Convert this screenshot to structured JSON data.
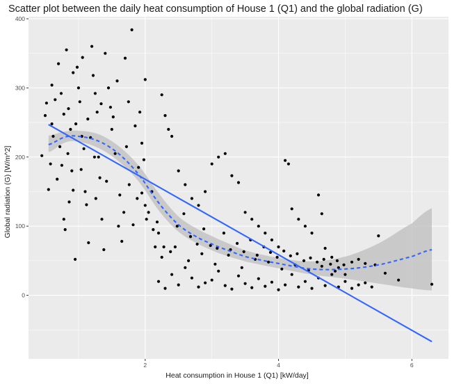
{
  "chart_data": {
    "type": "scatter",
    "title": "Scatter plot between the daily heat consumption of House 1 (Q1) and the global radiation (G)",
    "xlabel": "Heat consumption in House 1 (Q1) [kW/day]",
    "ylabel": "Global radiation (G) [W/m^2]",
    "xlim": [
      0.25,
      6.55
    ],
    "ylim": [
      -92,
      403
    ],
    "x_ticks": [
      2,
      4,
      6
    ],
    "x_tick_labels": [
      "2",
      "4",
      "6"
    ],
    "y_ticks": [
      0,
      100,
      200,
      300,
      400
    ],
    "y_tick_labels": [
      "0",
      "100",
      "200",
      "300",
      "400"
    ],
    "grid": true,
    "legend": "none",
    "colors": {
      "panel": "#ebebeb",
      "grid_major": "#ffffff",
      "points": "#000000",
      "linear_fit": "#3366ff",
      "smooth_fit": "#3366ff",
      "confidence_band": "#bdbdbd"
    },
    "linear_fit": {
      "x": [
        0.55,
        6.3
      ],
      "y": [
        247,
        -67
      ]
    },
    "smooth_fit": {
      "style": "dashed",
      "x": [
        0.55,
        0.8,
        1.0,
        1.3,
        1.6,
        1.9,
        2.2,
        2.5,
        2.8,
        3.1,
        3.5,
        4.0,
        4.5,
        5.0,
        5.5,
        6.0,
        6.3
      ],
      "y": [
        218,
        229,
        230,
        223,
        205,
        175,
        134,
        102,
        83,
        70,
        56,
        46,
        38,
        38,
        44,
        56,
        66
      ],
      "band_lower": [
        207,
        221,
        222,
        213,
        194,
        165,
        123,
        92,
        74,
        61,
        49,
        39,
        30,
        24,
        17,
        10,
        7
      ],
      "band_upper": [
        231,
        237,
        238,
        233,
        216,
        188,
        148,
        114,
        95,
        81,
        65,
        54,
        49,
        56,
        75,
        104,
        126
      ]
    },
    "points": [
      [
        0.45,
        202
      ],
      [
        0.55,
        153
      ],
      [
        0.5,
        260
      ],
      [
        0.6,
        304
      ],
      [
        0.6,
        248
      ],
      [
        0.65,
        283
      ],
      [
        0.7,
        335
      ],
      [
        0.72,
        215
      ],
      [
        0.75,
        188
      ],
      [
        0.78,
        110
      ],
      [
        0.8,
        95
      ],
      [
        0.82,
        355
      ],
      [
        0.85,
        270
      ],
      [
        0.88,
        240
      ],
      [
        0.9,
        180
      ],
      [
        0.92,
        152
      ],
      [
        0.95,
        52
      ],
      [
        0.98,
        330
      ],
      [
        1.0,
        300
      ],
      [
        1.02,
        280
      ],
      [
        1.05,
        230
      ],
      [
        1.08,
        212
      ],
      [
        1.1,
        150
      ],
      [
        1.12,
        131
      ],
      [
        1.15,
        76
      ],
      [
        1.2,
        360
      ],
      [
        1.22,
        318
      ],
      [
        1.25,
        292
      ],
      [
        1.28,
        265
      ],
      [
        1.3,
        200
      ],
      [
        1.32,
        170
      ],
      [
        1.35,
        110
      ],
      [
        1.38,
        66
      ],
      [
        1.4,
        350
      ],
      [
        1.45,
        300
      ],
      [
        1.5,
        240
      ],
      [
        1.55,
        205
      ],
      [
        1.6,
        100
      ],
      [
        1.65,
        78
      ],
      [
        1.7,
        343
      ],
      [
        1.75,
        280
      ],
      [
        1.8,
        384
      ],
      [
        1.85,
        245
      ],
      [
        1.9,
        185
      ],
      [
        1.95,
        148
      ],
      [
        2.0,
        130
      ],
      [
        2.05,
        120
      ],
      [
        2.1,
        150
      ],
      [
        2.15,
        70
      ],
      [
        2.2,
        90
      ],
      [
        2.25,
        290
      ],
      [
        2.3,
        260
      ],
      [
        2.0,
        312
      ],
      [
        1.95,
        220
      ],
      [
        2.35,
        240
      ],
      [
        2.4,
        230
      ],
      [
        2.5,
        180
      ],
      [
        2.6,
        160
      ],
      [
        2.7,
        140
      ],
      [
        2.8,
        130
      ],
      [
        2.9,
        150
      ],
      [
        3.0,
        190
      ],
      [
        3.1,
        200
      ],
      [
        3.2,
        205
      ],
      [
        3.3,
        173
      ],
      [
        3.4,
        163
      ],
      [
        3.5,
        120
      ],
      [
        3.6,
        110
      ],
      [
        3.7,
        100
      ],
      [
        3.8,
        90
      ],
      [
        3.9,
        80
      ],
      [
        4.0,
        70
      ],
      [
        4.1,
        195
      ],
      [
        4.15,
        190
      ],
      [
        4.2,
        125
      ],
      [
        4.3,
        110
      ],
      [
        4.4,
        100
      ],
      [
        4.5,
        90
      ],
      [
        4.6,
        145
      ],
      [
        4.65,
        118
      ],
      [
        4.7,
        68
      ],
      [
        4.8,
        55
      ],
      [
        4.9,
        40
      ],
      [
        5.0,
        30
      ],
      [
        5.1,
        48
      ],
      [
        5.2,
        52
      ],
      [
        5.3,
        46
      ],
      [
        5.45,
        44
      ],
      [
        5.5,
        86
      ],
      [
        5.6,
        32
      ],
      [
        5.8,
        22
      ],
      [
        6.3,
        16
      ],
      [
        2.2,
        20
      ],
      [
        2.3,
        10
      ],
      [
        2.4,
        30
      ],
      [
        2.5,
        15
      ],
      [
        2.6,
        40
      ],
      [
        2.7,
        25
      ],
      [
        2.8,
        12
      ],
      [
        2.9,
        18
      ],
      [
        3.0,
        22
      ],
      [
        3.1,
        35
      ],
      [
        3.2,
        14
      ],
      [
        3.3,
        9
      ],
      [
        3.4,
        28
      ],
      [
        3.5,
        17
      ],
      [
        3.6,
        11
      ],
      [
        3.7,
        24
      ],
      [
        3.8,
        13
      ],
      [
        3.9,
        19
      ],
      [
        4.0,
        8
      ],
      [
        4.1,
        15
      ],
      [
        4.2,
        30
      ],
      [
        4.3,
        12
      ],
      [
        4.4,
        20
      ],
      [
        4.5,
        10
      ],
      [
        4.6,
        25
      ],
      [
        4.7,
        14
      ],
      [
        4.8,
        30
      ],
      [
        4.9,
        12
      ],
      [
        5.0,
        20
      ],
      [
        5.1,
        10
      ],
      [
        5.2,
        15
      ],
      [
        5.3,
        18
      ],
      [
        5.4,
        12
      ],
      [
        2.25,
        55
      ],
      [
        2.45,
        70
      ],
      [
        2.65,
        50
      ],
      [
        2.85,
        60
      ],
      [
        3.05,
        45
      ],
      [
        3.25,
        58
      ],
      [
        3.45,
        40
      ],
      [
        3.65,
        52
      ],
      [
        3.85,
        48
      ],
      [
        4.05,
        38
      ],
      [
        4.25,
        44
      ],
      [
        4.45,
        36
      ],
      [
        4.65,
        42
      ],
      [
        4.85,
        35
      ],
      [
        0.52,
        278
      ],
      [
        0.58,
        190
      ],
      [
        0.62,
        230
      ],
      [
        0.68,
        168
      ],
      [
        0.74,
        292
      ],
      [
        0.78,
        262
      ],
      [
        0.84,
        205
      ],
      [
        0.86,
        135
      ],
      [
        0.92,
        322
      ],
      [
        0.96,
        248
      ],
      [
        1.04,
        182
      ],
      [
        1.06,
        344
      ],
      [
        1.14,
        255
      ],
      [
        1.18,
        228
      ],
      [
        1.24,
        200
      ],
      [
        1.26,
        140
      ],
      [
        1.34,
        277
      ],
      [
        1.42,
        165
      ],
      [
        1.48,
        272
      ],
      [
        1.52,
        258
      ],
      [
        1.58,
        310
      ],
      [
        1.62,
        145
      ],
      [
        1.68,
        120
      ],
      [
        1.72,
        215
      ],
      [
        1.76,
        160
      ],
      [
        1.82,
        102
      ],
      [
        1.88,
        140
      ],
      [
        1.92,
        265
      ],
      [
        1.98,
        196
      ],
      [
        2.02,
        110
      ],
      [
        2.12,
        95
      ],
      [
        2.18,
        106
      ],
      [
        2.28,
        70
      ],
      [
        2.38,
        63
      ],
      [
        2.48,
        100
      ],
      [
        2.58,
        118
      ],
      [
        2.68,
        85
      ],
      [
        2.78,
        74
      ],
      [
        2.88,
        96
      ],
      [
        2.98,
        72
      ],
      [
        3.08,
        68
      ],
      [
        3.18,
        90
      ],
      [
        3.28,
        66
      ],
      [
        3.38,
        75
      ],
      [
        3.48,
        63
      ],
      [
        3.58,
        80
      ],
      [
        3.68,
        58
      ],
      [
        3.78,
        70
      ],
      [
        3.88,
        62
      ],
      [
        3.98,
        55
      ],
      [
        4.08,
        64
      ],
      [
        4.18,
        57
      ],
      [
        4.28,
        60
      ],
      [
        4.38,
        50
      ],
      [
        4.48,
        54
      ],
      [
        4.58,
        48
      ],
      [
        4.68,
        52
      ],
      [
        4.78,
        45
      ],
      [
        4.88,
        50
      ],
      [
        4.98,
        44
      ]
    ]
  }
}
